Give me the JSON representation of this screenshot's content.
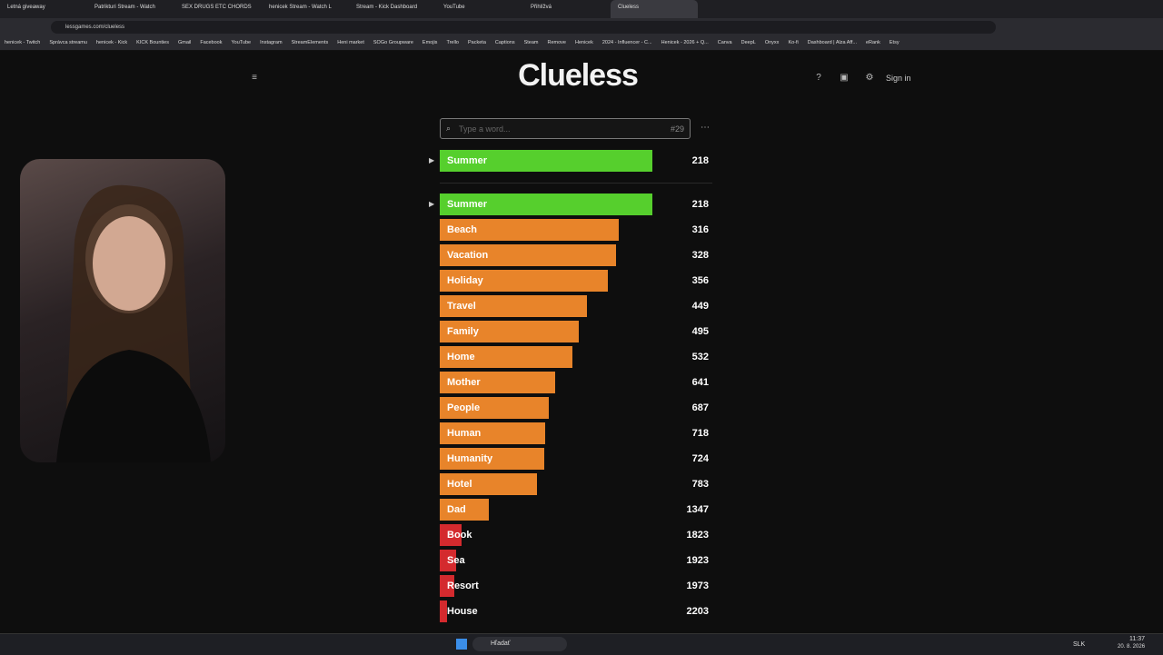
{
  "browser": {
    "tabs": [
      "Letná giveaway",
      "Patrikturi Stream - Watch",
      "SEX DRUGS ETC CHORDS",
      "henicek Stream - Watch L",
      "Stream - Kick Dashboard",
      "YouTube",
      "Přihlížvá",
      "Clueless"
    ],
    "url": "lessgames.com/clueless",
    "bookmarks": [
      "henicek - Twitch",
      "Správca streamu",
      "henicek - Kick",
      "KICK Bounties",
      "Gmail",
      "Facebook",
      "YouTube",
      "Instagram",
      "StreamElements",
      "Heni market",
      "SOGo Groupware",
      "Emojis",
      "Trello",
      "Packeta",
      "Captions",
      "Steam",
      "Remove",
      "Henicek",
      "2024 - Influencer - C...",
      "Henicek - 2026 + Q...",
      "Canva",
      "DeepL",
      "Onyxx",
      "Ko-fi",
      "Dashboard | Alza Aff...",
      "eRank",
      "Etsy"
    ]
  },
  "header": {
    "title": "Clueless",
    "help": "?",
    "sign_in": "Sign in"
  },
  "input": {
    "placeholder": "Type a word...",
    "guess_count": "#29"
  },
  "last_guess": {
    "word": "Summer",
    "rank": 218
  },
  "guesses": [
    {
      "word": "Summer",
      "rank": 218
    },
    {
      "word": "Beach",
      "rank": 316
    },
    {
      "word": "Vacation",
      "rank": 328
    },
    {
      "word": "Holiday",
      "rank": 356
    },
    {
      "word": "Travel",
      "rank": 449
    },
    {
      "word": "Family",
      "rank": 495
    },
    {
      "word": "Home",
      "rank": 532
    },
    {
      "word": "Mother",
      "rank": 641
    },
    {
      "word": "People",
      "rank": 687
    },
    {
      "word": "Human",
      "rank": 718
    },
    {
      "word": "Humanity",
      "rank": 724
    },
    {
      "word": "Hotel",
      "rank": 783
    },
    {
      "word": "Dad",
      "rank": 1347
    },
    {
      "word": "Book",
      "rank": 1823
    },
    {
      "word": "Sea",
      "rank": 1923
    },
    {
      "word": "Resort",
      "rank": 1973
    },
    {
      "word": "House",
      "rank": 2203
    }
  ],
  "taskbar": {
    "search": "Hľadať",
    "language": "SLK",
    "time": "11:37",
    "date": "20. 8. 2026"
  }
}
